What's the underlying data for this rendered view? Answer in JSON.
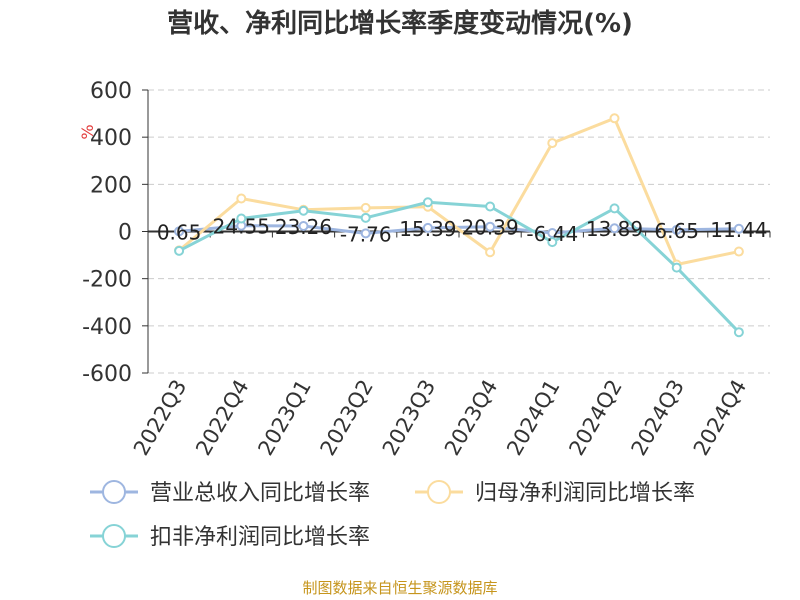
{
  "chart_data": {
    "type": "line",
    "title": "营收、净利同比增长率季度变动情况(%)",
    "ylabel": "%",
    "categories": [
      "2022Q3",
      "2022Q4",
      "2023Q1",
      "2023Q2",
      "2023Q3",
      "2023Q4",
      "2024Q1",
      "2024Q2",
      "2024Q3",
      "2024Q4"
    ],
    "ylim": [
      -600,
      600
    ],
    "yticks": [
      600,
      400,
      200,
      0,
      -200,
      -400,
      -600
    ],
    "grid": true,
    "legend_position": "bottom",
    "series": [
      {
        "name": "营业总收入同比增长率",
        "color": "#9eb6e0",
        "values": [
          0.65,
          24.55,
          23.26,
          -7.76,
          15.39,
          20.39,
          -6.44,
          13.89,
          6.65,
          11.44
        ],
        "labels": [
          "0.65",
          "24.55",
          "23.26",
          "-7.76",
          "15.39",
          "20.39",
          "-6.44",
          "13.89",
          "6.65",
          "11.44"
        ]
      },
      {
        "name": "归母净利润同比增长率",
        "color": "#fbdc9e",
        "values": [
          -80,
          140,
          92,
          100,
          105,
          -88,
          375,
          480,
          -140,
          -85
        ]
      },
      {
        "name": "扣非净利润同比增长率",
        "color": "#86d3d6",
        "values": [
          -82,
          55,
          88,
          58,
          124,
          106,
          -45,
          98,
          -153,
          -427
        ]
      }
    ],
    "source": "制图数据来自恒生聚源数据库"
  },
  "colors": {
    "title": "#333333",
    "axis": "#333333",
    "grid": "#cccccc",
    "ylabel": "#e23b3b",
    "source": "#c6951c"
  }
}
